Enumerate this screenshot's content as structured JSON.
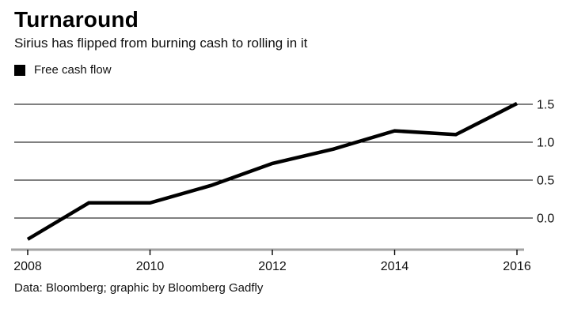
{
  "header": {
    "title": "Turnaround",
    "subtitle": "Sirius has flipped from burning cash to rolling in it"
  },
  "legend": {
    "items": [
      {
        "label": "Free cash flow",
        "color": "#000000"
      }
    ]
  },
  "footer": {
    "source": "Data: Bloomberg; graphic by Bloomberg Gadfly"
  },
  "colors": {
    "background": "#ffffff",
    "text": "#111111",
    "line": "#000000",
    "gridline": "#000000",
    "axis": "#a3a3a3",
    "tick": "#000000"
  },
  "chart_data": {
    "type": "line",
    "title": "Turnaround",
    "subtitle": "Sirius has flipped from burning cash to rolling in it",
    "x": [
      2008,
      2009,
      2010,
      2011,
      2012,
      2013,
      2014,
      2015,
      2016
    ],
    "series": [
      {
        "name": "Free cash flow",
        "values": [
          -0.28,
          0.2,
          0.2,
          0.43,
          0.72,
          0.91,
          1.15,
          1.1,
          1.51
        ]
      }
    ],
    "x_ticks": [
      2008,
      2010,
      2012,
      2014,
      2016
    ],
    "y_ticks": [
      0.0,
      0.5,
      1.0,
      1.5
    ],
    "ylim": [
      -0.42,
      1.78
    ],
    "xlabel": "",
    "ylabel": "",
    "grid": "horizontal",
    "y_axis_side": "right",
    "legend_position": "top-left",
    "source_note": "Data: Bloomberg; graphic by Bloomberg Gadfly"
  }
}
